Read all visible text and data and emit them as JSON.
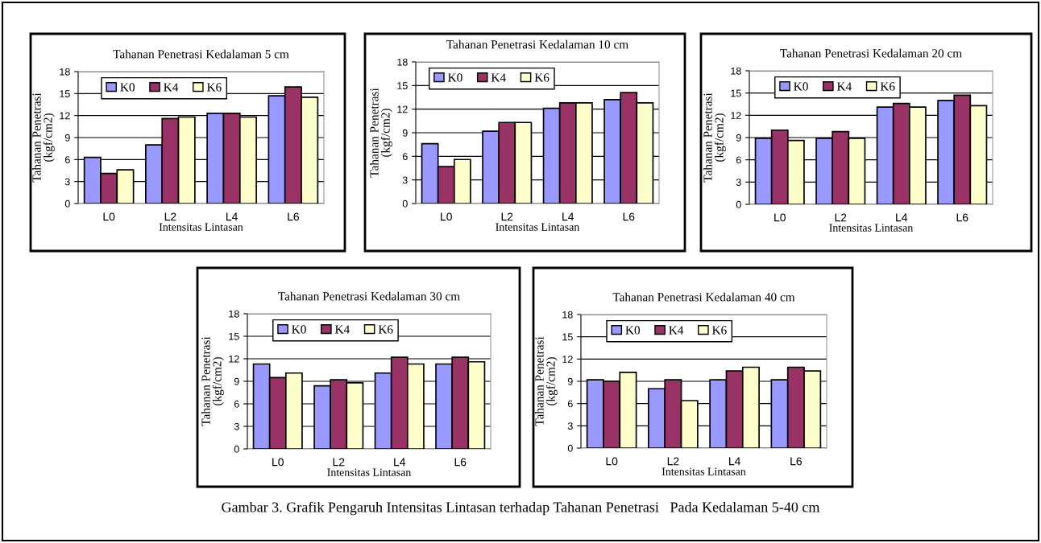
{
  "chart_data": [
    {
      "type": "bar",
      "title": "Tahanan Penetrasi Kedalaman 5 cm",
      "xlabel": "Intensitas Lintasan",
      "ylabel": "Tahanan Penetrasi\n(kgf/cm2)",
      "categories": [
        "L0",
        "L2",
        "L4",
        "L6"
      ],
      "ylim": [
        0,
        18
      ],
      "yticks": [
        0,
        3,
        6,
        9,
        12,
        15,
        18
      ],
      "grid": "y",
      "legend": "top left",
      "series": [
        {
          "name": "K0",
          "color": "#9999ff",
          "values": [
            6.3,
            8.0,
            12.3,
            14.7
          ]
        },
        {
          "name": "K4",
          "color": "#993366",
          "values": [
            4.1,
            11.6,
            12.3,
            15.9
          ]
        },
        {
          "name": "K6",
          "color": "#ffffcc",
          "values": [
            4.6,
            11.8,
            11.8,
            14.5
          ]
        }
      ]
    },
    {
      "type": "bar",
      "title": "Tahanan Penetrasi Kedalaman 10 cm",
      "xlabel": "Intensitas Lintasan",
      "ylabel": "Tahanan Penetrasi\n(kgf/cm2)",
      "categories": [
        "L0",
        "L2",
        "L4",
        "L6"
      ],
      "ylim": [
        0,
        18
      ],
      "yticks": [
        0,
        3,
        6,
        9,
        12,
        15,
        18
      ],
      "grid": "y",
      "legend": "top left",
      "series": [
        {
          "name": "K0",
          "color": "#9999ff",
          "values": [
            7.6,
            9.2,
            12.1,
            13.2
          ]
        },
        {
          "name": "K4",
          "color": "#993366",
          "values": [
            4.7,
            10.3,
            12.8,
            14.1
          ]
        },
        {
          "name": "K6",
          "color": "#ffffcc",
          "values": [
            5.6,
            10.3,
            12.8,
            12.8
          ]
        }
      ]
    },
    {
      "type": "bar",
      "title": "Tahanan Penetrasi Kedalaman 20 cm",
      "xlabel": "Intensitas Lintasan",
      "ylabel": "Tahanan Penetrasi\n(kgf/cm2)",
      "categories": [
        "L0",
        "L2",
        "L4",
        "L6"
      ],
      "ylim": [
        0,
        18
      ],
      "yticks": [
        0,
        3,
        6,
        9,
        12,
        15,
        18
      ],
      "grid": "y",
      "legend": "top left",
      "series": [
        {
          "name": "K0",
          "color": "#9999ff",
          "values": [
            8.9,
            8.9,
            13.1,
            14.0
          ]
        },
        {
          "name": "K4",
          "color": "#993366",
          "values": [
            10.0,
            9.8,
            13.6,
            14.7
          ]
        },
        {
          "name": "K6",
          "color": "#ffffcc",
          "values": [
            8.6,
            8.9,
            13.1,
            13.3
          ]
        }
      ]
    },
    {
      "type": "bar",
      "title": "Tahanan Penetrasi Kedalaman 30 cm",
      "xlabel": "Intensitas Lintasan",
      "ylabel": "Tahanan Penetrasi\n(kgf/cm2)",
      "categories": [
        "L0",
        "L2",
        "L4",
        "L6"
      ],
      "ylim": [
        0,
        18
      ],
      "yticks": [
        0,
        3,
        6,
        9,
        12,
        15,
        18
      ],
      "grid": "y",
      "legend": "top left",
      "series": [
        {
          "name": "K0",
          "color": "#9999ff",
          "values": [
            11.3,
            8.4,
            10.1,
            11.3
          ]
        },
        {
          "name": "K4",
          "color": "#993366",
          "values": [
            9.5,
            9.2,
            12.2,
            12.2
          ]
        },
        {
          "name": "K6",
          "color": "#ffffcc",
          "values": [
            10.1,
            8.8,
            11.3,
            11.6
          ]
        }
      ]
    },
    {
      "type": "bar",
      "title": "Tahanan Penetrasi Kedalaman 40 cm",
      "xlabel": "Intensitas Lintasan",
      "ylabel": "Tahanan Penetrasi\n(kgf/cm2)",
      "categories": [
        "L0",
        "L2",
        "L4",
        "L6"
      ],
      "ylim": [
        0,
        18
      ],
      "yticks": [
        0,
        3,
        6,
        9,
        12,
        15,
        18
      ],
      "grid": "y",
      "legend": "top left",
      "annotations": [
        "Gambar 3. Grafik Pengaruh Intensitas Lintasan terhadap Tahanan Penetrasi   Pada Kedalaman 5-40 cm"
      ],
      "series": [
        {
          "name": "K0",
          "color": "#9999ff",
          "values": [
            9.2,
            8.0,
            9.2,
            9.2
          ]
        },
        {
          "name": "K4",
          "color": "#993366",
          "values": [
            9.0,
            9.2,
            10.4,
            10.9
          ]
        },
        {
          "name": "K6",
          "color": "#ffffcc",
          "values": [
            10.2,
            6.4,
            10.9,
            10.4
          ]
        }
      ]
    }
  ]
}
